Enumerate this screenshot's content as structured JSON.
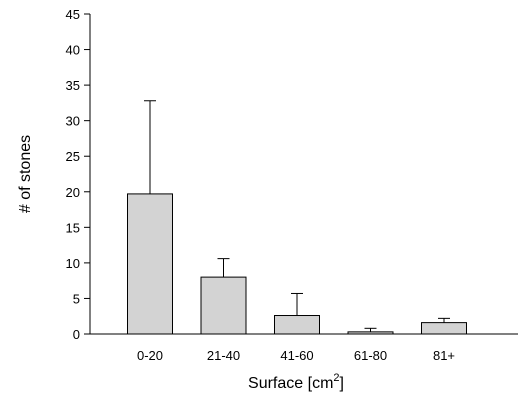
{
  "chart_data": {
    "type": "bar",
    "categories": [
      "0-20",
      "21-40",
      "41-60",
      "61-80",
      "81+"
    ],
    "values": [
      19.7,
      8.0,
      2.6,
      0.3,
      1.6
    ],
    "error_upper": [
      32.8,
      10.6,
      5.7,
      0.8,
      2.2
    ],
    "xlabel": "Surface [cm",
    "xlabel_superscript": "2",
    "xlabel_suffix": "]",
    "ylabel": "# of stones",
    "ylim": [
      0,
      45
    ],
    "yticks": [
      0,
      5,
      10,
      15,
      20,
      25,
      30,
      35,
      40,
      45
    ],
    "grid": false,
    "bar_color": "#d3d3d3",
    "edge_color": "#000000"
  }
}
